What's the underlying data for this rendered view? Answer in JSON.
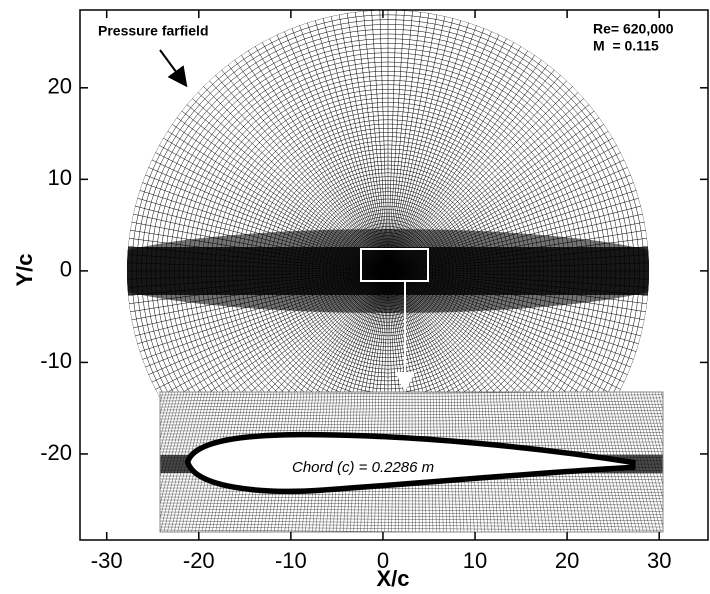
{
  "chart_data": {
    "type": "mesh",
    "xlabel": "X/c",
    "ylabel": "Y/c",
    "xlim": [
      -32.9,
      35.3
    ],
    "ylim": [
      -29.4,
      28.5
    ],
    "xticks": [
      -30,
      -20,
      -10,
      0,
      10,
      20,
      30
    ],
    "yticks": [
      -20,
      -10,
      0,
      10,
      20
    ],
    "annotations": {
      "farfield": "Pressure farfield",
      "reynolds": "Re= 620,000",
      "mach": "M  = 0.115",
      "chord": "Chord (c) = 0.2286 m"
    }
  }
}
